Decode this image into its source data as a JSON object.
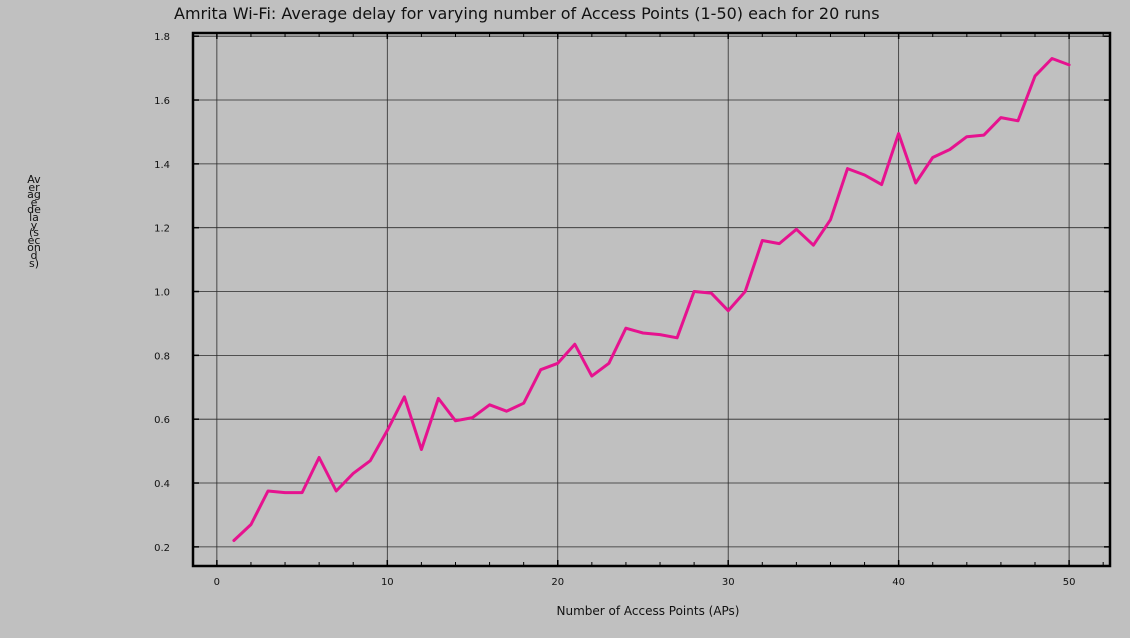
{
  "chart_data": {
    "type": "line",
    "title": "Amrita Wi-Fi: Average delay for varying number of Access Points (1-50) each for 20 runs",
    "xlabel": "Number of Access Points (APs)",
    "ylabel": "Average delay (seconds)",
    "xlim": [
      -1.4,
      52.4
    ],
    "ylim": [
      0.14,
      1.81
    ],
    "xticks": [
      0,
      10,
      20,
      30,
      40,
      50
    ],
    "yticks": [
      0.2,
      0.4,
      0.6,
      0.8,
      1.0,
      1.2,
      1.4,
      1.6,
      1.8
    ],
    "ytick_labels": [
      "0.2",
      "0.4",
      "0.6",
      "0.8",
      "1.0",
      "1.2",
      "1.4",
      "1.6",
      "1.8"
    ],
    "grid": true,
    "series": [
      {
        "color": "#e6128f",
        "x": [
          1,
          2,
          3,
          4,
          5,
          6,
          7,
          8,
          9,
          10,
          11,
          12,
          13,
          14,
          15,
          16,
          17,
          18,
          19,
          20,
          21,
          22,
          23,
          24,
          25,
          26,
          27,
          28,
          29,
          30,
          31,
          32,
          33,
          34,
          35,
          36,
          37,
          38,
          39,
          40,
          41,
          42,
          43,
          44,
          45,
          46,
          47,
          48,
          49,
          50
        ],
        "y": [
          0.22,
          0.27,
          0.375,
          0.37,
          0.37,
          0.48,
          0.375,
          0.43,
          0.47,
          0.565,
          0.67,
          0.505,
          0.665,
          0.595,
          0.605,
          0.645,
          0.625,
          0.65,
          0.755,
          0.775,
          0.835,
          0.735,
          0.775,
          0.885,
          0.87,
          0.865,
          0.855,
          1.0,
          0.995,
          0.94,
          1.0,
          1.16,
          1.15,
          1.195,
          1.145,
          1.225,
          1.385,
          1.365,
          1.335,
          1.495,
          1.34,
          1.42,
          1.445,
          1.485,
          1.49,
          1.545,
          1.535,
          1.675,
          1.73,
          1.71
        ]
      }
    ]
  }
}
